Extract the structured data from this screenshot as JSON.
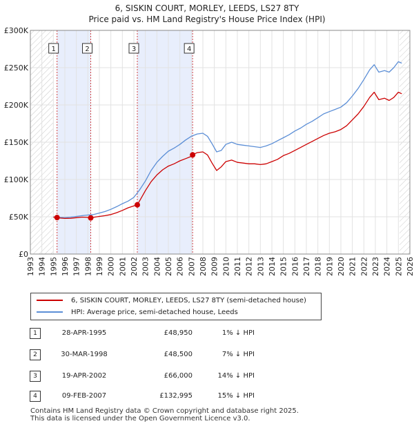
{
  "title_line1": "6, SISKIN COURT, MORLEY, LEEDS, LS27 8TY",
  "title_line2": "Price paid vs. HM Land Registry's House Price Index (HPI)",
  "chart_data": {
    "type": "line",
    "ylim": [
      0,
      300000
    ],
    "xlim": [
      1993,
      2026
    ],
    "y_ticks": [
      {
        "value": 0,
        "label": "£0"
      },
      {
        "value": 50000,
        "label": "£50K"
      },
      {
        "value": 100000,
        "label": "£100K"
      },
      {
        "value": 150000,
        "label": "£150K"
      },
      {
        "value": 200000,
        "label": "£200K"
      },
      {
        "value": 250000,
        "label": "£250K"
      },
      {
        "value": 300000,
        "label": "£300K"
      }
    ],
    "x_ticks": [
      "1993",
      "1994",
      "1995",
      "1996",
      "1997",
      "1998",
      "1999",
      "2000",
      "2001",
      "2002",
      "2003",
      "2004",
      "2005",
      "2006",
      "2007",
      "2008",
      "2009",
      "2010",
      "2011",
      "2012",
      "2013",
      "2014",
      "2015",
      "2016",
      "2017",
      "2018",
      "2019",
      "2020",
      "2021",
      "2022",
      "2023",
      "2024",
      "2025",
      "2026"
    ],
    "hatch_before": 1995.0,
    "hatch_after": 2025.1,
    "series": [
      {
        "name": "6, SISKIN COURT, MORLEY, LEEDS, LS27 8TY (semi-detached house)",
        "color": "#cc0000",
        "points": [
          [
            1995.0,
            49500
          ],
          [
            1995.32,
            48950
          ],
          [
            1995.6,
            48200
          ],
          [
            1996.0,
            47800
          ],
          [
            1996.5,
            48000
          ],
          [
            1997.0,
            48800
          ],
          [
            1997.5,
            49500
          ],
          [
            1998.0,
            49200
          ],
          [
            1998.25,
            48500
          ],
          [
            1998.6,
            49500
          ],
          [
            1999.0,
            50500
          ],
          [
            1999.5,
            51500
          ],
          [
            2000.0,
            53000
          ],
          [
            2000.5,
            55500
          ],
          [
            2001.0,
            58500
          ],
          [
            2001.5,
            62000
          ],
          [
            2002.0,
            64500
          ],
          [
            2002.3,
            66000
          ],
          [
            2002.6,
            74000
          ],
          [
            2003.0,
            85000
          ],
          [
            2003.5,
            97000
          ],
          [
            2004.0,
            106000
          ],
          [
            2004.5,
            113000
          ],
          [
            2005.0,
            118000
          ],
          [
            2005.5,
            121000
          ],
          [
            2006.0,
            125000
          ],
          [
            2006.5,
            128000
          ],
          [
            2007.0,
            131000
          ],
          [
            2007.1,
            132995
          ],
          [
            2007.5,
            136000
          ],
          [
            2008.0,
            137000
          ],
          [
            2008.4,
            133000
          ],
          [
            2008.8,
            122000
          ],
          [
            2009.2,
            112000
          ],
          [
            2009.6,
            117000
          ],
          [
            2010.0,
            124000
          ],
          [
            2010.5,
            126000
          ],
          [
            2011.0,
            123000
          ],
          [
            2011.5,
            122000
          ],
          [
            2012.0,
            121000
          ],
          [
            2012.5,
            121000
          ],
          [
            2013.0,
            120000
          ],
          [
            2013.5,
            121000
          ],
          [
            2014.0,
            124000
          ],
          [
            2014.5,
            127000
          ],
          [
            2015.0,
            132000
          ],
          [
            2015.5,
            135000
          ],
          [
            2016.0,
            139000
          ],
          [
            2016.5,
            143000
          ],
          [
            2017.0,
            147000
          ],
          [
            2017.5,
            151000
          ],
          [
            2018.0,
            155000
          ],
          [
            2018.5,
            159000
          ],
          [
            2019.0,
            162000
          ],
          [
            2019.5,
            164000
          ],
          [
            2020.0,
            167000
          ],
          [
            2020.5,
            172000
          ],
          [
            2021.0,
            180000
          ],
          [
            2021.5,
            188000
          ],
          [
            2022.0,
            198000
          ],
          [
            2022.5,
            210000
          ],
          [
            2022.9,
            217000
          ],
          [
            2023.3,
            207000
          ],
          [
            2023.8,
            209000
          ],
          [
            2024.2,
            206000
          ],
          [
            2024.6,
            210000
          ],
          [
            2025.0,
            217000
          ],
          [
            2025.3,
            215000
          ]
        ]
      },
      {
        "name": "HPI: Average price, semi-detached house, Leeds",
        "color": "#5b8ed6",
        "points": [
          [
            1995.0,
            49800
          ],
          [
            1995.5,
            49200
          ],
          [
            1996.0,
            49000
          ],
          [
            1996.5,
            49500
          ],
          [
            1997.0,
            50500
          ],
          [
            1997.5,
            51500
          ],
          [
            1998.0,
            52300
          ],
          [
            1998.5,
            53000
          ],
          [
            1999.0,
            55000
          ],
          [
            1999.5,
            57000
          ],
          [
            2000.0,
            60000
          ],
          [
            2000.5,
            63500
          ],
          [
            2001.0,
            67500
          ],
          [
            2001.5,
            71000
          ],
          [
            2002.0,
            76000
          ],
          [
            2002.5,
            86000
          ],
          [
            2003.0,
            98000
          ],
          [
            2003.5,
            112000
          ],
          [
            2004.0,
            123000
          ],
          [
            2004.5,
            131000
          ],
          [
            2005.0,
            138000
          ],
          [
            2005.5,
            142000
          ],
          [
            2006.0,
            147000
          ],
          [
            2006.5,
            153000
          ],
          [
            2007.0,
            158000
          ],
          [
            2007.5,
            161000
          ],
          [
            2008.0,
            162000
          ],
          [
            2008.4,
            158000
          ],
          [
            2008.8,
            148000
          ],
          [
            2009.2,
            137000
          ],
          [
            2009.6,
            139000
          ],
          [
            2010.0,
            147000
          ],
          [
            2010.5,
            150000
          ],
          [
            2011.0,
            147000
          ],
          [
            2011.5,
            146000
          ],
          [
            2012.0,
            145000
          ],
          [
            2012.5,
            144000
          ],
          [
            2013.0,
            143000
          ],
          [
            2013.5,
            145000
          ],
          [
            2014.0,
            148000
          ],
          [
            2014.5,
            152000
          ],
          [
            2015.0,
            156000
          ],
          [
            2015.5,
            160000
          ],
          [
            2016.0,
            165000
          ],
          [
            2016.5,
            169000
          ],
          [
            2017.0,
            174000
          ],
          [
            2017.5,
            178000
          ],
          [
            2018.0,
            183000
          ],
          [
            2018.5,
            188000
          ],
          [
            2019.0,
            191000
          ],
          [
            2019.5,
            194000
          ],
          [
            2020.0,
            197000
          ],
          [
            2020.5,
            203000
          ],
          [
            2021.0,
            212000
          ],
          [
            2021.5,
            222000
          ],
          [
            2022.0,
            234000
          ],
          [
            2022.5,
            247000
          ],
          [
            2022.9,
            254000
          ],
          [
            2023.3,
            244000
          ],
          [
            2023.8,
            246000
          ],
          [
            2024.2,
            244000
          ],
          [
            2024.6,
            250000
          ],
          [
            2025.0,
            258000
          ],
          [
            2025.3,
            256000
          ]
        ]
      }
    ],
    "transactions": [
      {
        "num": "1",
        "date": "28-APR-1995",
        "x": 1995.32,
        "price_value": 48950,
        "price": "£48,950",
        "hpi_diff": "1% ↓ HPI"
      },
      {
        "num": "2",
        "date": "30-MAR-1998",
        "x": 1998.25,
        "price_value": 48500,
        "price": "£48,500",
        "hpi_diff": "7% ↓ HPI"
      },
      {
        "num": "3",
        "date": "19-APR-2002",
        "x": 2002.3,
        "price_value": 66000,
        "price": "£66,000",
        "hpi_diff": "14% ↓ HPI"
      },
      {
        "num": "4",
        "date": "09-FEB-2007",
        "x": 2007.11,
        "price_value": 132995,
        "price": "£132,995",
        "hpi_diff": "15% ↓ HPI"
      }
    ],
    "shaded_spans": [
      [
        1995.32,
        1998.25
      ],
      [
        2002.3,
        2007.11
      ]
    ]
  },
  "legend": {
    "property_label": "6, SISKIN COURT, MORLEY, LEEDS, LS27 8TY (semi-detached house)",
    "hpi_label": "HPI: Average price, semi-detached house, Leeds",
    "property_color": "#cc0000",
    "hpi_color": "#5b8ed6"
  },
  "footer": {
    "line1": "Contains HM Land Registry data © Crown copyright and database right 2025.",
    "line2": "This data is licensed under the Open Government Licence v3.0."
  }
}
